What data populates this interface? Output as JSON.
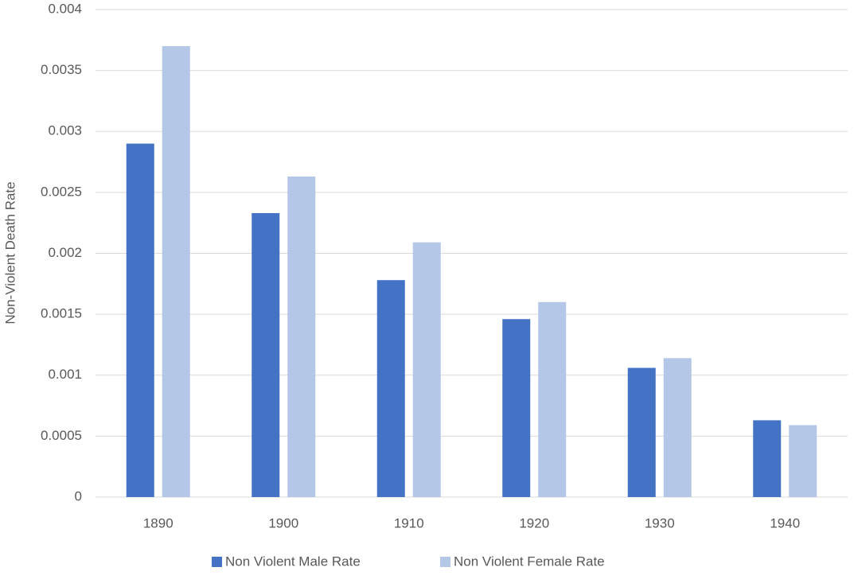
{
  "chart_data": {
    "type": "bar",
    "y_label": "Non-Violent Death Rate",
    "categories": [
      "1890",
      "1900",
      "1910",
      "1920",
      "1930",
      "1940"
    ],
    "series": [
      {
        "name": "Non Violent Male Rate",
        "color": "#4472c4",
        "values": [
          0.0029,
          0.00233,
          0.00178,
          0.00146,
          0.00106,
          0.00063
        ]
      },
      {
        "name": "Non Violent Female Rate",
        "color": "#b4c7e7",
        "values": [
          0.0037,
          0.00263,
          0.00209,
          0.0016,
          0.00114,
          0.00059
        ]
      }
    ],
    "ylim": [
      0,
      0.004
    ],
    "yticks": [
      0,
      0.0005,
      0.001,
      0.0015,
      0.002,
      0.0025,
      0.003,
      0.0035,
      0.004
    ],
    "grid": true,
    "legend": "bottom"
  }
}
